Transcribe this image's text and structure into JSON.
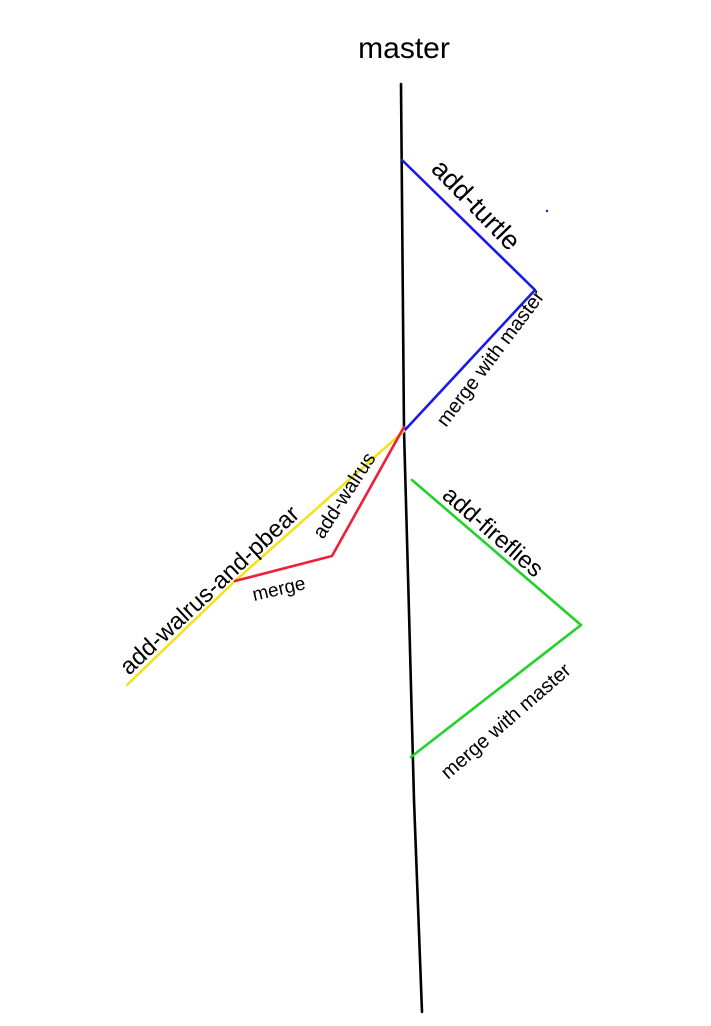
{
  "diagram": {
    "master_label": "master",
    "branches": {
      "add_turtle": {
        "label": "add-turtle",
        "merge_label": "merge with master",
        "color": "#1a1ae6"
      },
      "add_fireflies": {
        "label": "add-fireflies",
        "merge_label": "merge with master",
        "color": "#22d12b"
      },
      "add_walrus": {
        "label": "add-walrus",
        "merge_label": "merge",
        "color": "#ee1f3b"
      },
      "add_walrus_and_pbear": {
        "label": "add-walrus-and-pbear",
        "color": "#f5e21b"
      }
    },
    "master_color": "#000000"
  }
}
